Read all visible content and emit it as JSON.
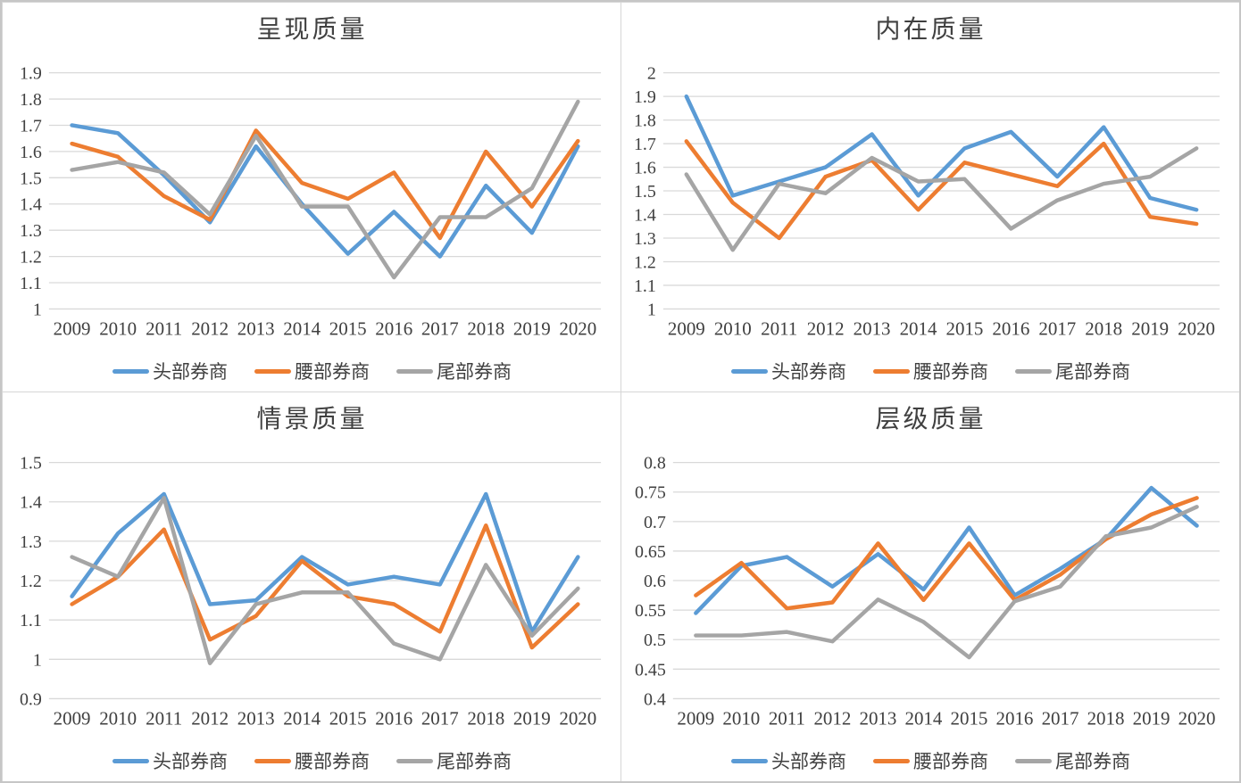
{
  "colors": {
    "blue": "#5B9BD5",
    "orange": "#ED7D31",
    "gray": "#A5A5A5",
    "gridline": "#D9D9D9",
    "text": "#404040"
  },
  "chart_data": [
    {
      "type": "line",
      "title": "呈现质量",
      "x": [
        "2009",
        "2010",
        "2011",
        "2012",
        "2013",
        "2014",
        "2015",
        "2016",
        "2017",
        "2018",
        "2019",
        "2020"
      ],
      "ylim": [
        1.0,
        1.9
      ],
      "yticks": [
        "1",
        "1.1",
        "1.2",
        "1.3",
        "1.4",
        "1.5",
        "1.6",
        "1.7",
        "1.8",
        "1.9"
      ],
      "grid": true,
      "legend_position": "bottom",
      "series": [
        {
          "name": "头部券商",
          "color": "blue",
          "values": [
            1.7,
            1.67,
            1.51,
            1.33,
            1.62,
            1.4,
            1.21,
            1.37,
            1.2,
            1.47,
            1.29,
            1.62
          ]
        },
        {
          "name": "腰部券商",
          "color": "orange",
          "values": [
            1.63,
            1.58,
            1.43,
            1.34,
            1.68,
            1.48,
            1.42,
            1.52,
            1.27,
            1.6,
            1.39,
            1.64
          ]
        },
        {
          "name": "尾部券商",
          "color": "gray",
          "values": [
            1.53,
            1.56,
            1.52,
            1.36,
            1.66,
            1.39,
            1.39,
            1.12,
            1.35,
            1.35,
            1.46,
            1.79
          ]
        }
      ]
    },
    {
      "type": "line",
      "title": "内在质量",
      "x": [
        "2009",
        "2010",
        "2011",
        "2012",
        "2013",
        "2014",
        "2015",
        "2016",
        "2017",
        "2018",
        "2019",
        "2020"
      ],
      "ylim": [
        1.0,
        2.0
      ],
      "yticks": [
        "1",
        "1.1",
        "1.2",
        "1.3",
        "1.4",
        "1.5",
        "1.6",
        "1.7",
        "1.8",
        "1.9",
        "2"
      ],
      "grid": true,
      "legend_position": "bottom",
      "series": [
        {
          "name": "头部券商",
          "color": "blue",
          "values": [
            1.9,
            1.48,
            1.54,
            1.6,
            1.74,
            1.48,
            1.68,
            1.75,
            1.56,
            1.77,
            1.47,
            1.42
          ]
        },
        {
          "name": "腰部券商",
          "color": "orange",
          "values": [
            1.71,
            1.45,
            1.3,
            1.56,
            1.63,
            1.42,
            1.62,
            1.57,
            1.52,
            1.7,
            1.39,
            1.36
          ]
        },
        {
          "name": "尾部券商",
          "color": "gray",
          "values": [
            1.57,
            1.25,
            1.53,
            1.49,
            1.64,
            1.54,
            1.55,
            1.34,
            1.46,
            1.53,
            1.56,
            1.68
          ]
        }
      ]
    },
    {
      "type": "line",
      "title": "情景质量",
      "x": [
        "2009",
        "2010",
        "2011",
        "2012",
        "2013",
        "2014",
        "2015",
        "2016",
        "2017",
        "2018",
        "2019",
        "2020"
      ],
      "ylim": [
        0.9,
        1.5
      ],
      "yticks": [
        "0.9",
        "1",
        "1.1",
        "1.2",
        "1.3",
        "1.4",
        "1.5"
      ],
      "grid": true,
      "legend_position": "bottom",
      "series": [
        {
          "name": "头部券商",
          "color": "blue",
          "values": [
            1.16,
            1.32,
            1.42,
            1.14,
            1.15,
            1.26,
            1.19,
            1.21,
            1.19,
            1.42,
            1.07,
            1.26
          ]
        },
        {
          "name": "腰部券商",
          "color": "orange",
          "values": [
            1.14,
            1.21,
            1.33,
            1.05,
            1.11,
            1.25,
            1.16,
            1.14,
            1.07,
            1.34,
            1.03,
            1.14
          ]
        },
        {
          "name": "尾部券商",
          "color": "gray",
          "values": [
            1.26,
            1.21,
            1.41,
            0.99,
            1.14,
            1.17,
            1.17,
            1.04,
            1.0,
            1.24,
            1.06,
            1.18
          ]
        }
      ]
    },
    {
      "type": "line",
      "title": "层级质量",
      "x": [
        "2009",
        "2010",
        "2011",
        "2012",
        "2013",
        "2014",
        "2015",
        "2016",
        "2017",
        "2018",
        "2019",
        "2020"
      ],
      "ylim": [
        0.4,
        0.8
      ],
      "yticks": [
        "0.4",
        "0.45",
        "0.5",
        "0.55",
        "0.6",
        "0.65",
        "0.7",
        "0.75",
        "0.8"
      ],
      "grid": true,
      "legend_position": "bottom",
      "series": [
        {
          "name": "头部券商",
          "color": "blue",
          "values": [
            0.545,
            0.625,
            0.64,
            0.59,
            0.645,
            0.585,
            0.69,
            0.575,
            0.62,
            0.67,
            0.757,
            0.693
          ]
        },
        {
          "name": "腰部券商",
          "color": "orange",
          "values": [
            0.575,
            0.63,
            0.553,
            0.563,
            0.663,
            0.567,
            0.663,
            0.567,
            0.61,
            0.67,
            0.712,
            0.74
          ]
        },
        {
          "name": "尾部券商",
          "color": "gray",
          "values": [
            0.507,
            0.507,
            0.513,
            0.497,
            0.568,
            0.53,
            0.47,
            0.565,
            0.59,
            0.675,
            0.69,
            0.725
          ]
        }
      ]
    }
  ]
}
